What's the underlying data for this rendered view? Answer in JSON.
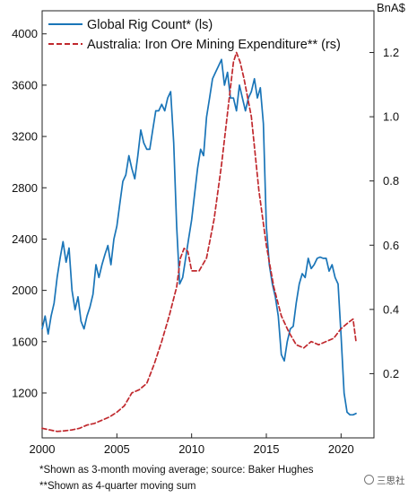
{
  "chart_data": {
    "type": "line",
    "right_axis_unit": "BnA$",
    "x_ticks": [
      2000,
      2005,
      2010,
      2015,
      2020
    ],
    "xlim": [
      2000,
      2022.2
    ],
    "y_left_ticks": [
      1200,
      1600,
      2000,
      2400,
      2800,
      3200,
      3600,
      4000
    ],
    "y_left_lim": [
      850,
      4180
    ],
    "y_right_ticks": [
      "0.2",
      "0.4",
      "0.6",
      "0.8",
      "1.0",
      "1.2"
    ],
    "y_right_lim": [
      0,
      1.33
    ],
    "legend_placement": "top-left",
    "grid": false,
    "series": [
      {
        "name": "Global Rig Count* (ls)",
        "axis": "left",
        "color": "#1a75b8",
        "style": "solid",
        "x": [
          2000.0,
          2000.2,
          2000.4,
          2000.6,
          2000.8,
          2001.0,
          2001.2,
          2001.4,
          2001.6,
          2001.8,
          2002.0,
          2002.2,
          2002.4,
          2002.6,
          2002.8,
          2003.0,
          2003.2,
          2003.4,
          2003.6,
          2003.8,
          2004.0,
          2004.2,
          2004.4,
          2004.6,
          2004.8,
          2005.0,
          2005.2,
          2005.4,
          2005.6,
          2005.8,
          2006.0,
          2006.2,
          2006.4,
          2006.6,
          2006.8,
          2007.0,
          2007.2,
          2007.4,
          2007.6,
          2007.8,
          2008.0,
          2008.2,
          2008.4,
          2008.6,
          2008.8,
          2009.0,
          2009.2,
          2009.4,
          2009.6,
          2009.8,
          2010.0,
          2010.2,
          2010.4,
          2010.6,
          2010.8,
          2011.0,
          2011.2,
          2011.4,
          2011.6,
          2011.8,
          2012.0,
          2012.2,
          2012.4,
          2012.6,
          2012.8,
          2013.0,
          2013.2,
          2013.4,
          2013.6,
          2013.8,
          2014.0,
          2014.2,
          2014.4,
          2014.6,
          2014.8,
          2015.0,
          2015.2,
          2015.4,
          2015.6,
          2015.8,
          2016.0,
          2016.2,
          2016.4,
          2016.6,
          2016.8,
          2017.0,
          2017.2,
          2017.4,
          2017.6,
          2017.8,
          2018.0,
          2018.2,
          2018.4,
          2018.6,
          2018.8,
          2019.0,
          2019.2,
          2019.4,
          2019.6,
          2019.8,
          2020.0,
          2020.2,
          2020.4,
          2020.6,
          2020.8,
          2021.0
        ],
        "values": [
          1700,
          1800,
          1660,
          1800,
          1900,
          2100,
          2250,
          2380,
          2220,
          2330,
          2000,
          1850,
          1950,
          1760,
          1700,
          1800,
          1870,
          1970,
          2200,
          2100,
          2200,
          2280,
          2350,
          2200,
          2400,
          2500,
          2680,
          2850,
          2900,
          3050,
          2950,
          2870,
          3050,
          3250,
          3150,
          3100,
          3100,
          3250,
          3400,
          3400,
          3450,
          3400,
          3500,
          3550,
          3150,
          2500,
          2050,
          2100,
          2250,
          2400,
          2550,
          2750,
          2950,
          3100,
          3050,
          3350,
          3500,
          3650,
          3700,
          3750,
          3800,
          3600,
          3700,
          3500,
          3500,
          3400,
          3600,
          3500,
          3400,
          3500,
          3550,
          3650,
          3500,
          3580,
          3300,
          2500,
          2200,
          2050,
          1950,
          1800,
          1500,
          1450,
          1600,
          1700,
          1720,
          1900,
          2050,
          2130,
          2100,
          2250,
          2170,
          2200,
          2250,
          2260,
          2250,
          2250,
          2150,
          2200,
          2100,
          2050,
          1650,
          1200,
          1050,
          1030,
          1030,
          1040
        ]
      },
      {
        "name": "Australia: Iron Ore Mining Expenditure** (rs)",
        "axis": "right",
        "color": "#c0282d",
        "style": "dashed",
        "x": [
          2000.0,
          2000.5,
          2001.0,
          2001.5,
          2002.0,
          2002.5,
          2003.0,
          2003.5,
          2004.0,
          2004.5,
          2005.0,
          2005.5,
          2006.0,
          2006.5,
          2007.0,
          2007.5,
          2008.0,
          2008.5,
          2009.0,
          2009.25,
          2009.5,
          2009.75,
          2010.0,
          2010.5,
          2011.0,
          2011.5,
          2012.0,
          2012.5,
          2012.8,
          2013.0,
          2013.25,
          2013.5,
          2014.0,
          2014.5,
          2015.0,
          2015.5,
          2016.0,
          2016.5,
          2017.0,
          2017.5,
          2018.0,
          2018.5,
          2019.0,
          2019.5,
          2020.0,
          2020.5,
          2020.8,
          2021.0
        ],
        "values": [
          0.03,
          0.025,
          0.02,
          0.022,
          0.025,
          0.03,
          0.04,
          0.045,
          0.055,
          0.065,
          0.08,
          0.1,
          0.14,
          0.15,
          0.17,
          0.23,
          0.3,
          0.38,
          0.47,
          0.56,
          0.59,
          0.58,
          0.52,
          0.52,
          0.56,
          0.68,
          0.85,
          1.05,
          1.17,
          1.2,
          1.17,
          1.12,
          1.0,
          0.77,
          0.6,
          0.47,
          0.38,
          0.33,
          0.29,
          0.28,
          0.3,
          0.29,
          0.3,
          0.31,
          0.34,
          0.36,
          0.37,
          0.3
        ]
      }
    ]
  },
  "footnotes": [
    "*Shown as 3-month moving average; source: Baker Hughes",
    "**Shown as 4-quarter moving sum"
  ],
  "watermark": "三思社"
}
